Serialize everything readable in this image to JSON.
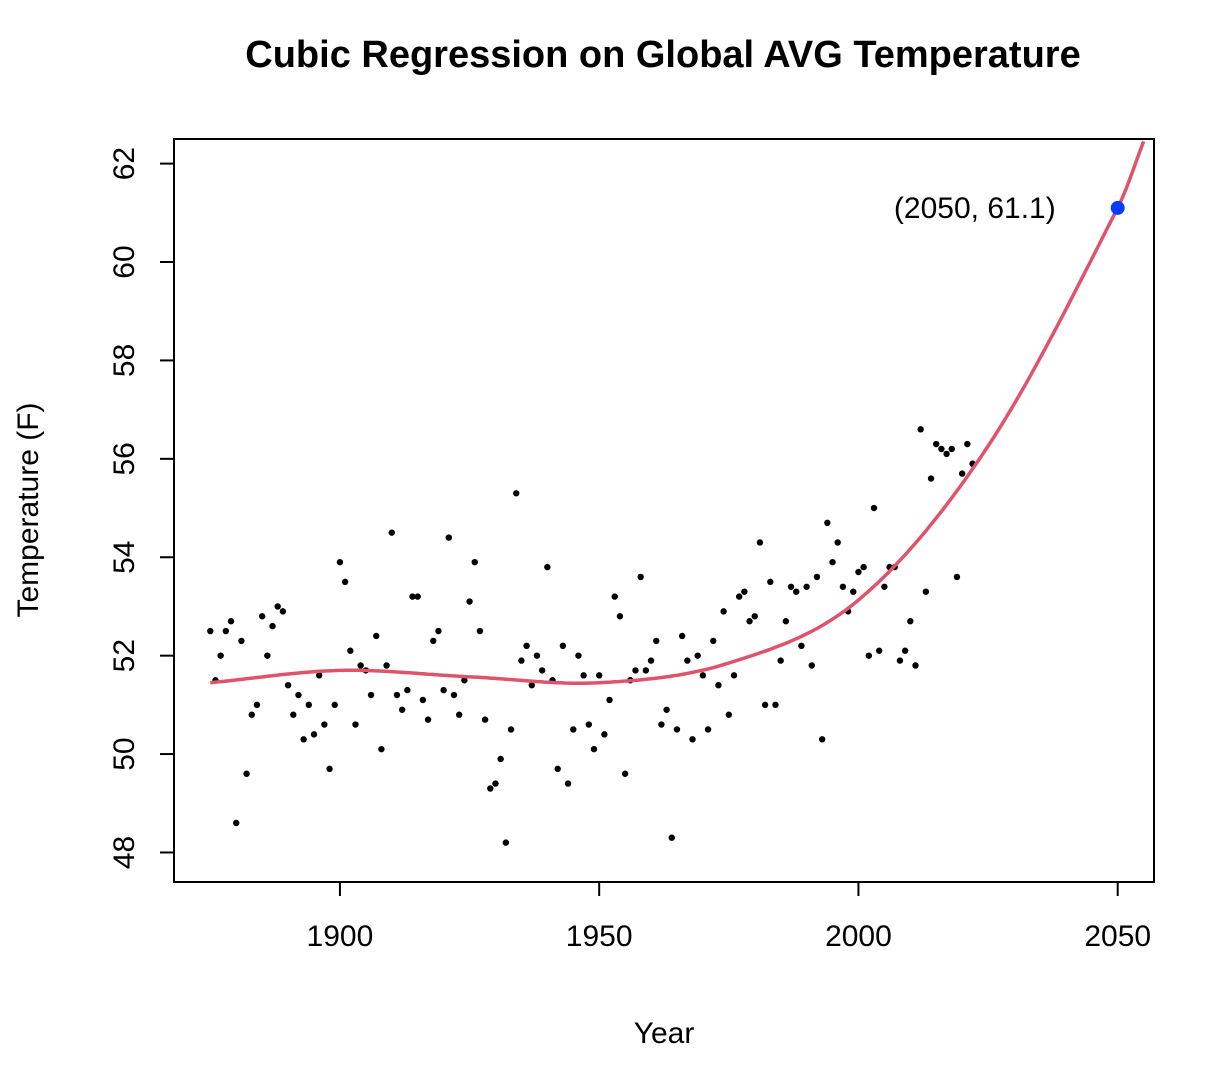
{
  "chart_data": {
    "type": "scatter",
    "title": "Cubic Regression on Global AVG Temperature",
    "xlabel": "Year",
    "ylabel": "Temperature (F)",
    "xlim": [
      1868,
      2057
    ],
    "ylim": [
      47.4,
      62.5
    ],
    "x_ticks": [
      "1900",
      "1950",
      "2000",
      "2050"
    ],
    "y_ticks": [
      "48",
      "50",
      "52",
      "54",
      "56",
      "58",
      "60",
      "62"
    ],
    "grid": false,
    "point_color": "#000000",
    "curve_color": "#df536b",
    "highlight_color": "#0a3cff",
    "series": [
      {
        "x": [
          1875,
          1876,
          1877,
          1878,
          1879,
          1880,
          1881,
          1882,
          1883,
          1884,
          1885,
          1886,
          1887,
          1888,
          1889,
          1890,
          1891,
          1892,
          1893,
          1894,
          1895,
          1896,
          1897,
          1898,
          1899,
          1900,
          1901,
          1902,
          1903,
          1904,
          1905,
          1906,
          1907,
          1908,
          1909,
          1910,
          1911,
          1912,
          1913,
          1914,
          1915,
          1916,
          1917,
          1918,
          1919,
          1920,
          1921,
          1922,
          1923,
          1924,
          1925,
          1926,
          1927,
          1928,
          1929,
          1930,
          1931,
          1932,
          1933,
          1934,
          1935,
          1936,
          1937,
          1938,
          1939,
          1940,
          1941,
          1942,
          1943,
          1944,
          1945,
          1946,
          1947,
          1948,
          1949,
          1950,
          1951,
          1952,
          1953,
          1954,
          1955,
          1956,
          1957,
          1958,
          1959,
          1960,
          1961,
          1962,
          1963,
          1964,
          1965,
          1966,
          1967,
          1968,
          1969,
          1970,
          1971,
          1972,
          1973,
          1974,
          1975,
          1976,
          1977,
          1978,
          1979,
          1980,
          1981,
          1982,
          1983,
          1984,
          1985,
          1986,
          1987,
          1988,
          1989,
          1990,
          1991,
          1992,
          1993,
          1994,
          1995,
          1996,
          1997,
          1998,
          1999,
          2000,
          2001,
          2002,
          2003,
          2004,
          2005,
          2006,
          2007,
          2008,
          2009,
          2010,
          2011,
          2012,
          2013,
          2014,
          2015,
          2016,
          2017,
          2018,
          2019,
          2020,
          2021,
          2022
        ],
        "y": [
          52.5,
          51.5,
          52.0,
          52.5,
          52.7,
          48.6,
          52.3,
          49.6,
          50.8,
          51.0,
          52.8,
          52.0,
          52.6,
          53.0,
          52.9,
          51.4,
          50.8,
          51.2,
          50.3,
          51.0,
          50.4,
          51.6,
          50.6,
          49.7,
          51.0,
          53.9,
          53.5,
          52.1,
          50.6,
          51.8,
          51.7,
          51.2,
          52.4,
          50.1,
          51.8,
          54.5,
          51.2,
          50.9,
          51.3,
          53.2,
          53.2,
          51.1,
          50.7,
          52.3,
          52.5,
          51.3,
          54.4,
          51.2,
          50.8,
          51.5,
          53.1,
          53.9,
          52.5,
          50.7,
          49.3,
          49.4,
          49.9,
          48.2,
          50.5,
          55.3,
          51.9,
          52.2,
          51.4,
          52.0,
          51.7,
          53.8,
          51.5,
          49.7,
          52.2,
          49.4,
          50.5,
          52.0,
          51.6,
          50.6,
          50.1,
          51.6,
          50.4,
          51.1,
          53.2,
          52.8,
          49.6,
          51.5,
          51.7,
          53.6,
          51.7,
          51.9,
          52.3,
          50.6,
          50.9,
          48.3,
          50.5,
          52.4,
          51.9,
          50.3,
          52.0,
          51.6,
          50.5,
          52.3,
          51.4,
          52.9,
          50.8,
          51.6,
          53.2,
          53.3,
          52.7,
          52.8,
          54.3,
          51.0,
          53.5,
          51.0,
          51.9,
          52.7,
          53.4,
          53.3,
          52.2,
          53.4,
          51.8,
          53.6,
          50.3,
          54.7,
          53.9,
          54.3,
          53.4,
          52.9,
          53.3,
          53.7,
          53.8,
          52.0,
          55.0,
          52.1,
          53.4,
          53.8,
          53.8,
          51.9,
          52.1,
          52.7,
          51.8,
          56.6,
          53.3,
          55.6,
          56.3,
          56.2,
          56.1,
          56.2,
          53.6,
          55.7,
          56.3,
          55.9
        ]
      }
    ],
    "fit_curve": [
      [
        1875,
        51.45
      ],
      [
        1900,
        51.7
      ],
      [
        1925,
        51.57
      ],
      [
        1950,
        51.45
      ],
      [
        1975,
        51.85
      ],
      [
        2000,
        53.13
      ],
      [
        2025,
        56.26
      ],
      [
        2050,
        61.1
      ],
      [
        2055,
        62.45
      ]
    ],
    "highlight_point": {
      "x": 2050,
      "y": 61.1,
      "label": "(2050, 61.1)"
    }
  }
}
